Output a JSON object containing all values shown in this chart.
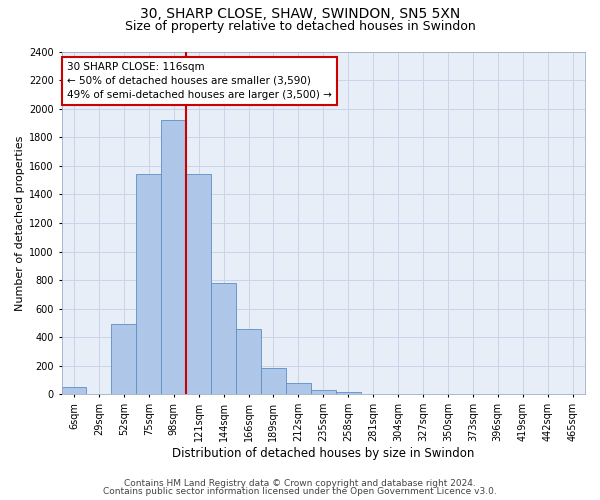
{
  "title_line1": "30, SHARP CLOSE, SHAW, SWINDON, SN5 5XN",
  "title_line2": "Size of property relative to detached houses in Swindon",
  "xlabel": "Distribution of detached houses by size in Swindon",
  "ylabel": "Number of detached properties",
  "footnote1": "Contains HM Land Registry data © Crown copyright and database right 2024.",
  "footnote2": "Contains public sector information licensed under the Open Government Licence v3.0.",
  "bar_color": "#aec6e8",
  "bar_edge_color": "#5b8ec4",
  "categories": [
    "6sqm",
    "29sqm",
    "52sqm",
    "75sqm",
    "98sqm",
    "121sqm",
    "144sqm",
    "166sqm",
    "189sqm",
    "212sqm",
    "235sqm",
    "258sqm",
    "281sqm",
    "304sqm",
    "327sqm",
    "350sqm",
    "373sqm",
    "396sqm",
    "419sqm",
    "442sqm",
    "465sqm"
  ],
  "values": [
    50,
    0,
    490,
    1540,
    1920,
    1540,
    780,
    460,
    185,
    80,
    30,
    20,
    0,
    0,
    0,
    0,
    0,
    0,
    0,
    0,
    0
  ],
  "ylim": [
    0,
    2400
  ],
  "yticks": [
    0,
    200,
    400,
    600,
    800,
    1000,
    1200,
    1400,
    1600,
    1800,
    2000,
    2200,
    2400
  ],
  "annotation_text": "30 SHARP CLOSE: 116sqm\n← 50% of detached houses are smaller (3,590)\n49% of semi-detached houses are larger (3,500) →",
  "vline_index": 5,
  "vline_color": "#cc0000",
  "annotation_box_facecolor": "#ffffff",
  "annotation_box_edgecolor": "#cc0000",
  "grid_color": "#c8d4e8",
  "background_color": "#e8eef8",
  "title_fontsize": 10,
  "subtitle_fontsize": 9,
  "ylabel_fontsize": 8,
  "xlabel_fontsize": 8.5,
  "tick_fontsize": 7,
  "footnote_fontsize": 6.5,
  "annotation_fontsize": 7.5
}
